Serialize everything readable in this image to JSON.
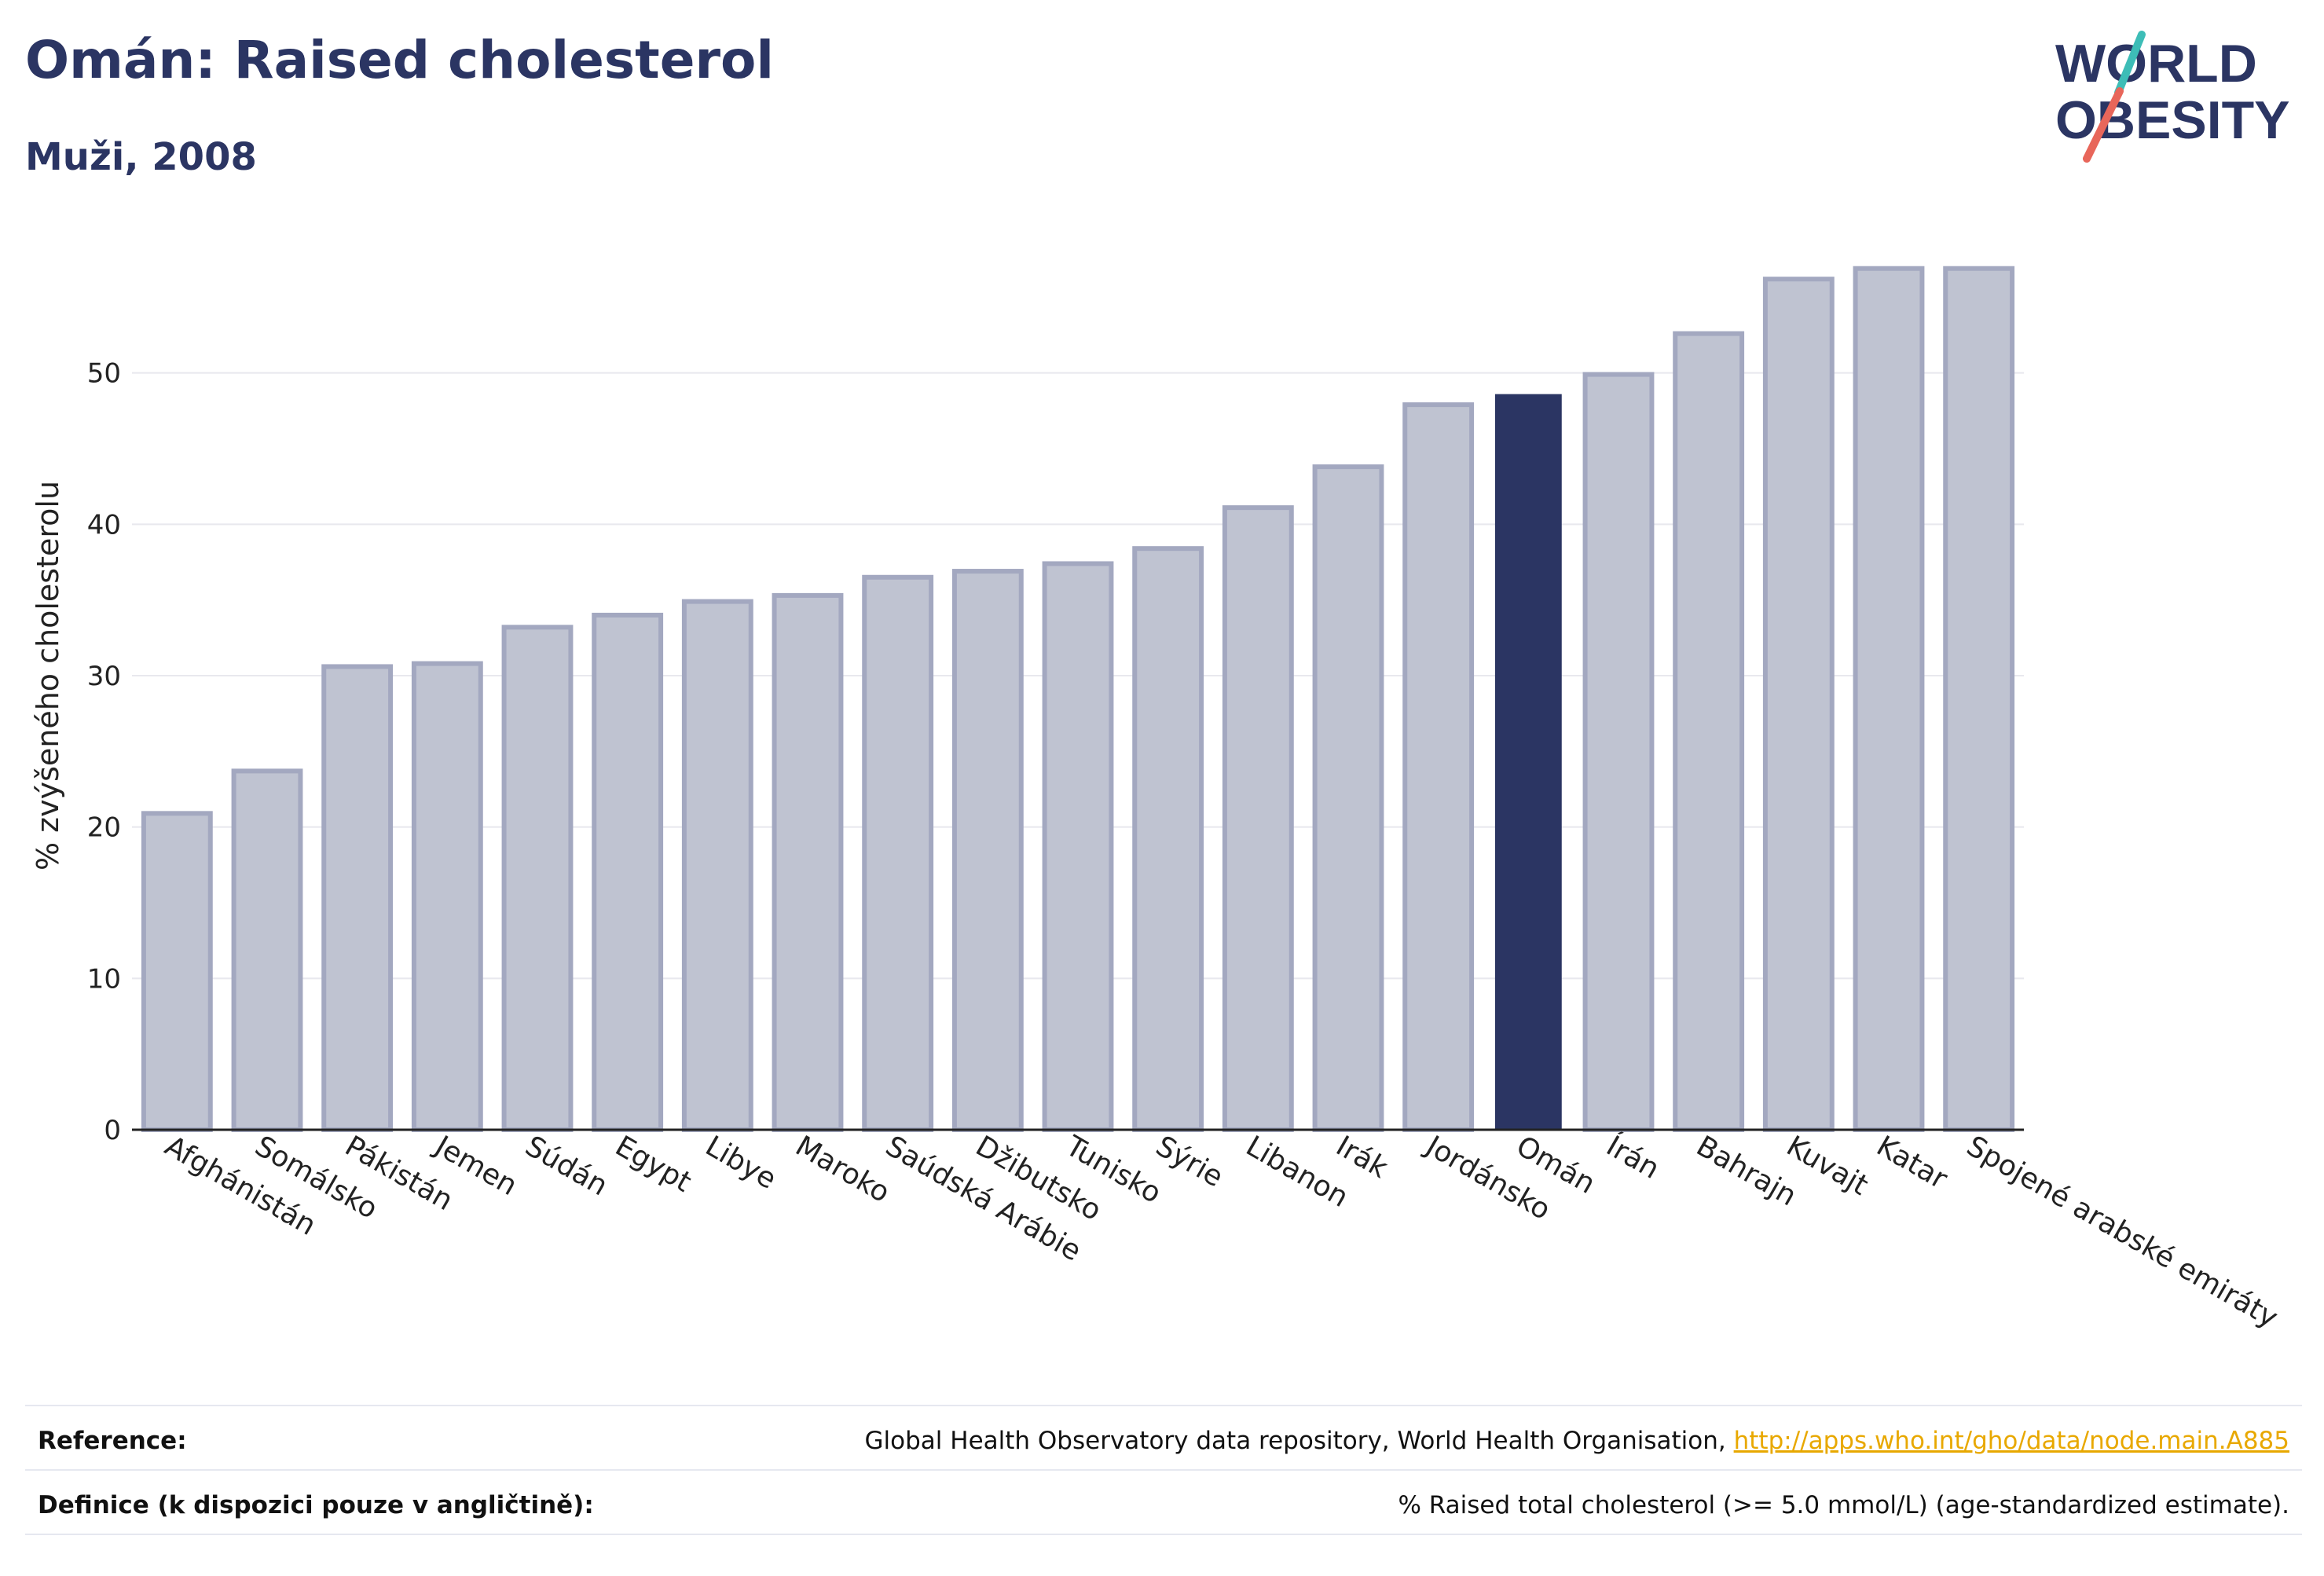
{
  "header": {
    "title": "Omán: Raised cholesterol",
    "subtitle": "Muži, 2008"
  },
  "logo": {
    "line1": "WORLD",
    "line2": "OBESITY",
    "accent_teal": "#3dbdb7",
    "accent_red": "#e8665a",
    "text_color": "#2b3563"
  },
  "chart_data": {
    "type": "bar",
    "ylabel": "% zvýšeného cholesterolu",
    "ylim": [
      0,
      60
    ],
    "yticks": [
      0,
      10,
      20,
      30,
      40,
      50
    ],
    "grid": true,
    "highlight": "Omán",
    "colors": {
      "bar_fill": "#bfc3d1",
      "bar_stroke": "#a3a8c0",
      "highlight_fill": "#2b3563",
      "grid": "#e8e8ee",
      "axis": "#222222"
    },
    "categories": [
      "Afghánistán",
      "Somálsko",
      "Pákistán",
      "Jemen",
      "Súdán",
      "Egypt",
      "Libye",
      "Maroko",
      "Saúdská Arábie",
      "Džibutsko",
      "Tunisko",
      "Sýrie",
      "Libanon",
      "Irák",
      "Jordánsko",
      "Omán",
      "Írán",
      "Bahrajn",
      "Kuvajt",
      "Katar",
      "Spojené arabské emiráty"
    ],
    "values": [
      20.9,
      23.7,
      30.6,
      30.8,
      33.2,
      34.0,
      34.9,
      35.3,
      36.5,
      36.9,
      37.4,
      38.4,
      41.1,
      43.8,
      47.9,
      48.6,
      49.9,
      52.6,
      56.2,
      56.9,
      56.9
    ]
  },
  "footer": {
    "reference_label": "Reference:",
    "reference_text": "Global Health Observatory data repository, World Health Organisation, ",
    "reference_link": "http://apps.who.int/gho/data/node.main.A885",
    "definition_label": "Definice (k dispozici pouze v angličtině):",
    "definition_text": "% Raised total cholesterol (>= 5.0 mmol/L) (age-standardized estimate)."
  }
}
